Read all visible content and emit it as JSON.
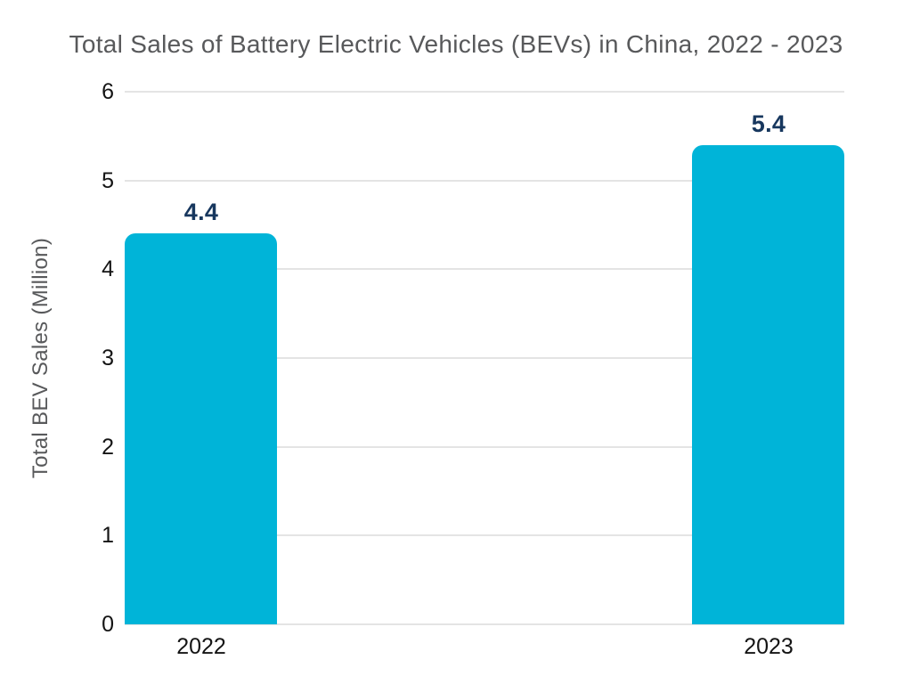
{
  "chart_data": {
    "type": "bar",
    "title": "Total Sales of Battery Electric Vehicles (BEVs) in China, 2022 - 2023",
    "categories": [
      "2022",
      "2023"
    ],
    "values": [
      4.4,
      5.4
    ],
    "value_labels": [
      "4.4",
      "5.4"
    ],
    "xlabel": "",
    "ylabel": "Total BEV Sales (Million)",
    "ylim": [
      0,
      6
    ],
    "yticks": [
      0,
      1,
      2,
      3,
      4,
      5,
      6
    ],
    "grid": true,
    "legend_position": "none",
    "colors": {
      "bar": "#00b4d8",
      "value_label": "#17375e",
      "title": "#58595b",
      "axis_title": "#58595b",
      "tick_label": "#141414",
      "gridline": "#e4e4e4",
      "background": "#ffffff"
    }
  }
}
